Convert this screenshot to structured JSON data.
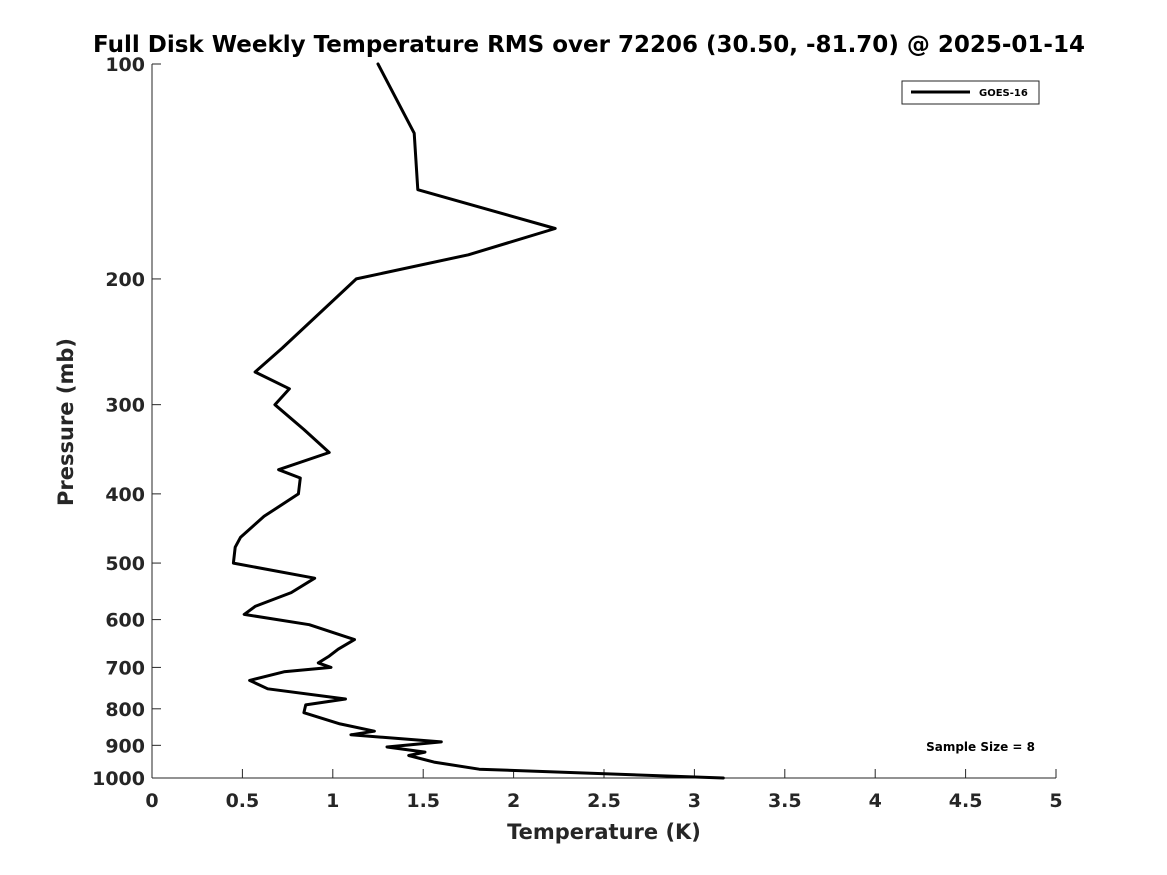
{
  "chart_data": {
    "type": "line",
    "title": "Full Disk Weekly Temperature RMS over 72206 (30.50, -81.70) @ 2025-01-14",
    "xlabel": "Temperature (K)",
    "ylabel": "Pressure (mb)",
    "xlim": [
      0,
      5
    ],
    "ylim": [
      100,
      1000
    ],
    "y_scale": "log",
    "y_reversed": true,
    "x_ticks": [
      "0",
      "0.5",
      "1",
      "1.5",
      "2",
      "2.5",
      "3",
      "3.5",
      "4",
      "4.5",
      "5"
    ],
    "y_ticks": [
      "100",
      "200",
      "300",
      "400",
      "500",
      "600",
      "700",
      "800",
      "900",
      "1000"
    ],
    "grid": false,
    "legend_position": "top-right",
    "annotation": "Sample Size = 8",
    "series": [
      {
        "name": "GOES-16",
        "color": "#000000",
        "points": [
          [
            1.25,
            100
          ],
          [
            1.45,
            125
          ],
          [
            1.47,
            150
          ],
          [
            2.23,
            170
          ],
          [
            1.75,
            185
          ],
          [
            1.13,
            200
          ],
          [
            1.04,
            210
          ],
          [
            0.72,
            250
          ],
          [
            0.57,
            270
          ],
          [
            0.76,
            285
          ],
          [
            0.68,
            300
          ],
          [
            0.84,
            325
          ],
          [
            0.98,
            350
          ],
          [
            0.7,
            370
          ],
          [
            0.82,
            380
          ],
          [
            0.81,
            400
          ],
          [
            0.62,
            430
          ],
          [
            0.49,
            460
          ],
          [
            0.46,
            475
          ],
          [
            0.45,
            500
          ],
          [
            0.9,
            525
          ],
          [
            0.77,
            550
          ],
          [
            0.57,
            575
          ],
          [
            0.51,
            590
          ],
          [
            0.87,
            610
          ],
          [
            1.12,
            640
          ],
          [
            1.03,
            660
          ],
          [
            0.98,
            675
          ],
          [
            0.92,
            690
          ],
          [
            0.99,
            700
          ],
          [
            0.73,
            710
          ],
          [
            0.54,
            730
          ],
          [
            0.64,
            750
          ],
          [
            1.07,
            775
          ],
          [
            0.85,
            790
          ],
          [
            0.84,
            810
          ],
          [
            1.04,
            840
          ],
          [
            1.23,
            860
          ],
          [
            1.1,
            870
          ],
          [
            1.6,
            890
          ],
          [
            1.3,
            905
          ],
          [
            1.51,
            920
          ],
          [
            1.42,
            930
          ],
          [
            1.56,
            950
          ],
          [
            1.81,
            972
          ],
          [
            3.16,
            1000
          ]
        ]
      }
    ]
  }
}
